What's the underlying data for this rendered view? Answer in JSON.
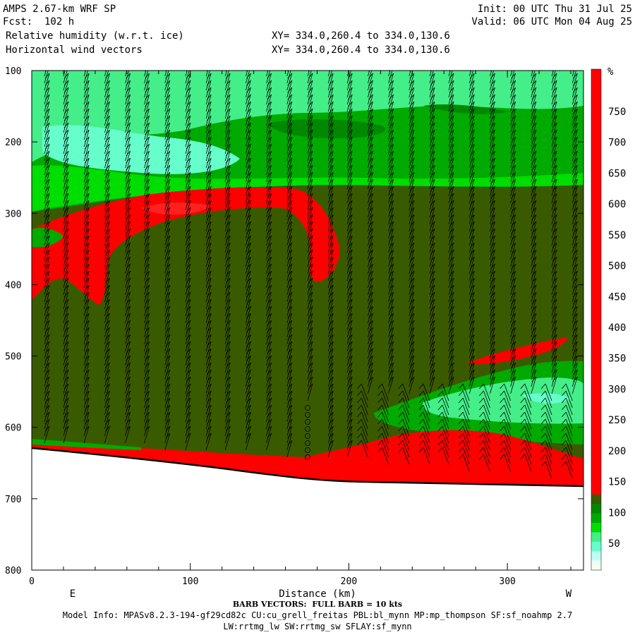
{
  "header": {
    "model": "AMPS 2.67-km WRF SP",
    "forecast": "Fcst:  102 h",
    "field1": "Relative humidity (w.r.t. ice)",
    "field2": "Horizontal wind vectors",
    "init": "Init: 00 UTC Thu 31 Jul 25",
    "valid": "Valid: 06 UTC Mon 04 Aug 25",
    "xy1": "XY= 334.0,260.4 to 334.0,130.6",
    "xy2": "XY= 334.0,260.4 to 334.0,130.6"
  },
  "footer": {
    "barb_note": "BARB VECTORS:  FULL BARB = 10 kts",
    "model_info": "Model Info: MPASv8.2.3-194-gf29cd82c CU:cu_grell_freitas PBL:bl_mynn MP:mp_thompson SF:sf_noahmp 2.7",
    "model_info2": "LW:rrtmg_lw SW:rrtmg_sw SFLAY:sf_mynn"
  },
  "chart_data": {
    "type": "heatmap",
    "title": "Relative humidity (w.r.t. ice)",
    "xlabel": "Distance (km)",
    "xlim": [
      0,
      348
    ],
    "x_ticks": [
      0,
      100,
      200,
      300
    ],
    "x_end_labels": {
      "left": "E",
      "right": "W"
    },
    "ylim": [
      100,
      800
    ],
    "y_ticks": [
      100,
      200,
      300,
      400,
      500,
      600,
      700,
      800
    ],
    "colorbar": {
      "unit": "%",
      "labels": [
        50,
        100,
        150,
        200,
        250,
        300,
        350,
        400,
        450,
        500,
        550,
        600,
        650,
        700,
        750
      ],
      "colors": [
        "#f4fff4",
        "#bffff0",
        "#66ffcc",
        "#44ee88",
        "#00dd00",
        "#00aa00",
        "#008800",
        "#3a5a00",
        "#ff0000",
        "#ff0000",
        "#ff0000",
        "#ff0000",
        "#ff0000",
        "#ff0000",
        "#ff0000",
        "#ff0000",
        "#ff0000",
        "#ff0000",
        "#ff0000",
        "#ff0000",
        "#ff0000",
        "#ff0000",
        "#ff0000",
        "#ff0000",
        "#ff0000",
        "#ff0000",
        "#ff0000",
        "#ff0000",
        "#ff0000",
        "#ff0000",
        "#ff0000",
        "#ff0000",
        "#ff0000",
        "#ff0000",
        "#ff0000",
        "#ff0000",
        "#ff0000",
        "#ff0000",
        "#ff0000",
        "#ff0000",
        "#ff0000",
        "#ff0000",
        "#ff0000",
        "#ff0000",
        "#ff0000",
        "#ff0000",
        "#ff0000",
        "#ff0000",
        "#ff0000",
        "#ff0000",
        "#ff0000",
        "#ff0000",
        "#ff0000"
      ]
    },
    "regions": {
      "moist_upper_band": "green 100-290 hPa",
      "saturated_layer": "red ~280-420 hPa west half",
      "surface_moist_layer": "red near surface 630-690 hPa"
    },
    "surface_pressure_left": 630,
    "surface_pressure_right": 690,
    "barb_columns_x": [
      8,
      20,
      33,
      46,
      59,
      71,
      84,
      97,
      110,
      122,
      135,
      148,
      161,
      174,
      187,
      199,
      212,
      225,
      238,
      251,
      263,
      276,
      289,
      302,
      315,
      328,
      341
    ],
    "calm_column_x": 174
  }
}
